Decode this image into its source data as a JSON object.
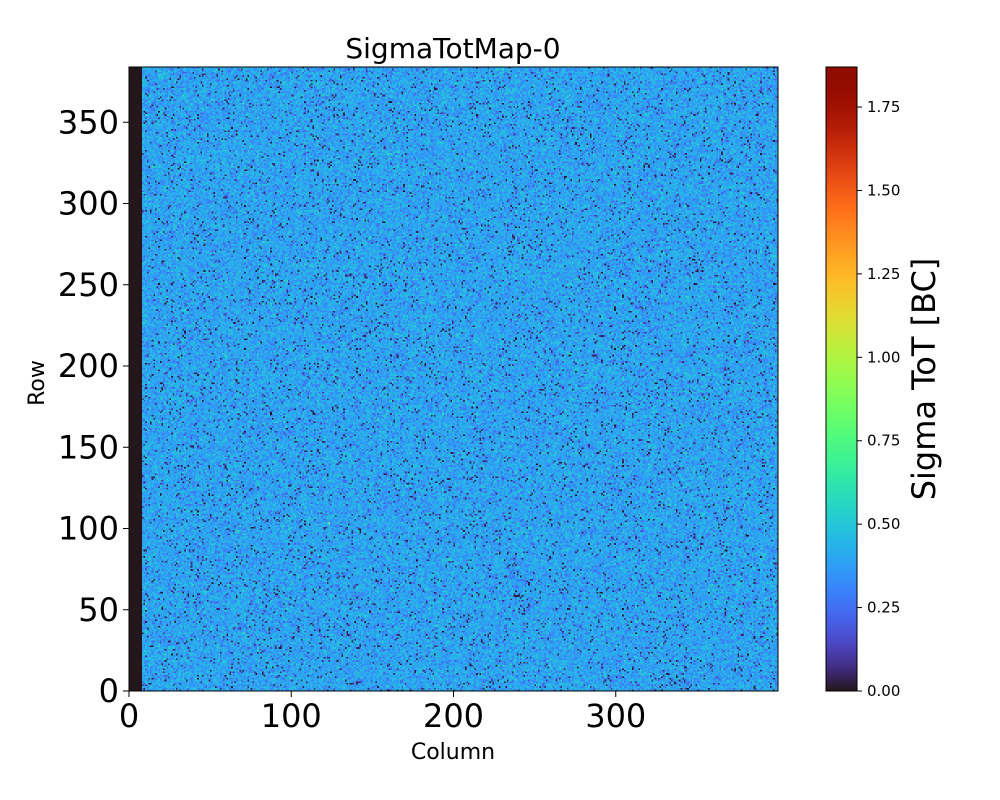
{
  "chart_data": {
    "type": "heatmap",
    "title": "SigmaTotMap-0",
    "xlabel": "Column",
    "ylabel": "Row",
    "xlim": [
      0,
      400
    ],
    "ylim": [
      0,
      384
    ],
    "x_ticks": [
      0,
      100,
      200,
      300
    ],
    "x_tick_labels": [
      "0",
      "100",
      "200",
      "300"
    ],
    "y_ticks": [
      0,
      50,
      100,
      150,
      200,
      250,
      300,
      350
    ],
    "y_tick_labels": [
      "0",
      "50",
      "100",
      "150",
      "200",
      "250",
      "300",
      "350"
    ],
    "grid": false,
    "colormap": "turbo",
    "colorbar": {
      "label": "Sigma ToT [BC]",
      "range": [
        0.0,
        1.87
      ],
      "ticks": [
        0.0,
        0.25,
        0.5,
        0.75,
        1.0,
        1.25,
        1.5,
        1.75
      ],
      "tick_labels": [
        "0.00",
        "0.25",
        "0.50",
        "0.75",
        "1.00",
        "1.25",
        "1.50",
        "1.75"
      ]
    },
    "data_description": {
      "dead_columns": [
        0,
        7
      ],
      "dead_value": 0.0,
      "typical_value": 0.4,
      "value_spread": 0.1,
      "min_value": 0.0,
      "max_value": 1.87
    },
    "hot_pixels": [
      {
        "column": 123,
        "row": 103,
        "value": 1.0
      }
    ]
  }
}
